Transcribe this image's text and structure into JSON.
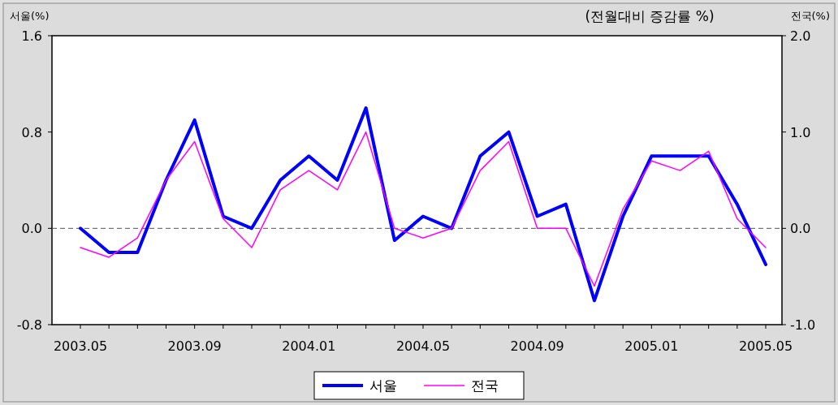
{
  "chart_data": {
    "type": "line",
    "title": "(전월대비 증감률 %)",
    "ylabel": "서울(%)",
    "y2label": "전국(%)",
    "categories": [
      "2003.05",
      null,
      null,
      null,
      "2003.09",
      null,
      null,
      null,
      "2004.01",
      null,
      null,
      null,
      "2004.05",
      null,
      null,
      null,
      "2004.09",
      null,
      null,
      null,
      "2005.01",
      null,
      null,
      null,
      "2005.05"
    ],
    "series": [
      {
        "name": "서울",
        "color": "#0000ff",
        "values": [
          0.0,
          -0.2,
          -0.2,
          0.4,
          0.9,
          0.1,
          0.0,
          0.4,
          0.6,
          0.4,
          1.0,
          -0.1,
          0.1,
          0.0,
          0.6,
          0.8,
          0.1,
          0.2,
          -0.6,
          0.1,
          0.6,
          0.6,
          0.6,
          0.2,
          -0.3
        ]
      },
      {
        "name": "전국",
        "color": "#ff00ff",
        "axis": "y2",
        "values": [
          -0.2,
          -0.3,
          -0.1,
          0.5,
          0.9,
          0.1,
          -0.2,
          0.4,
          0.6,
          0.4,
          1.0,
          0.0,
          -0.1,
          0.0,
          0.6,
          0.9,
          0.0,
          0.0,
          -0.6,
          0.2,
          0.7,
          0.6,
          0.8,
          0.1,
          -0.2
        ]
      }
    ],
    "ylim": [
      -0.8,
      1.6
    ],
    "yticks": [
      {
        "value": 1.6,
        "label": "1.6"
      },
      {
        "value": 0.8,
        "label": "0.8"
      },
      {
        "value": 0,
        "label": "0.0"
      },
      {
        "value": -0.8,
        "label": "-0.8"
      }
    ],
    "y2lim": [
      -1.0,
      2.0
    ],
    "y2ticks": [
      {
        "value": 2,
        "label": "2.0"
      },
      {
        "value": 1,
        "label": "1.0"
      },
      {
        "value": 0,
        "label": "0.0"
      },
      {
        "value": -1,
        "label": "-1.0"
      }
    ],
    "ref_lines": [
      {
        "axis": "y",
        "value": 0,
        "color": "#555555",
        "line_style": "dashed"
      }
    ],
    "grid": false,
    "legend": "bottom"
  }
}
